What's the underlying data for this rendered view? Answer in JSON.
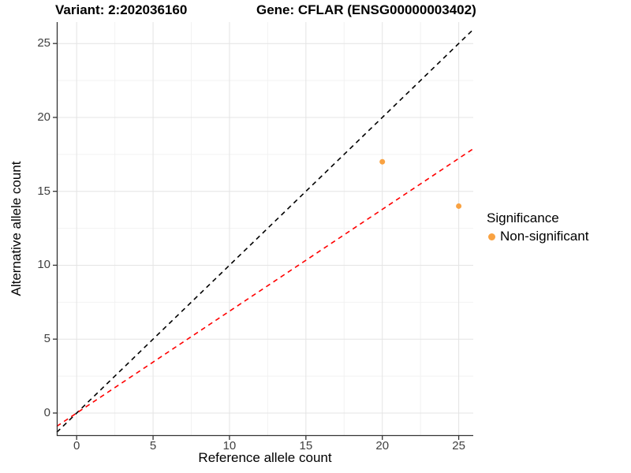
{
  "title": {
    "variant": "Variant: 2:202036160",
    "gene": "Gene: CFLAR (ENSG00000003402)"
  },
  "legend": {
    "title": "Significance",
    "items": [
      {
        "label": "Non-significant",
        "color": "#F9A242"
      }
    ]
  },
  "colors": {
    "grid_major": "#E4E4E4",
    "grid_minor": "#F2F2F2",
    "axis_line": "#333333",
    "tick_mark": "#333333",
    "tick_label": "#404040",
    "point": "#F9A242",
    "identity_line": "#000000",
    "ratio_line": "#FF0000"
  },
  "chart_data": {
    "type": "scatter",
    "title": "Variant: 2:202036160   Gene: CFLAR (ENSG00000003402)",
    "xlabel": "Reference allele count",
    "ylabel": "Alternative allele count",
    "xlim": [
      -1.3,
      25.95
    ],
    "ylim": [
      -1.55,
      26.45
    ],
    "x_ticks": [
      0,
      5,
      10,
      15,
      20,
      25
    ],
    "y_ticks": [
      0,
      5,
      10,
      15,
      20,
      25
    ],
    "x_minor_ticks": [
      2.5,
      7.5,
      12.5,
      17.5,
      22.5
    ],
    "y_minor_ticks": [
      2.5,
      7.5,
      12.5,
      17.5,
      22.5
    ],
    "grid": true,
    "legend_position": "right",
    "series": [
      {
        "name": "Non-significant",
        "color": "#F9A242",
        "marker": "circle",
        "points": [
          [
            20,
            17
          ],
          [
            25,
            14
          ]
        ]
      }
    ],
    "reference_lines": [
      {
        "name": "identity-line",
        "slope": 1.0,
        "intercept": 0,
        "color": "#000000",
        "style": "dashed"
      },
      {
        "name": "allelic-ratio-line",
        "slope": 0.689,
        "intercept": 0,
        "color": "#FF0000",
        "style": "dashed"
      }
    ]
  }
}
